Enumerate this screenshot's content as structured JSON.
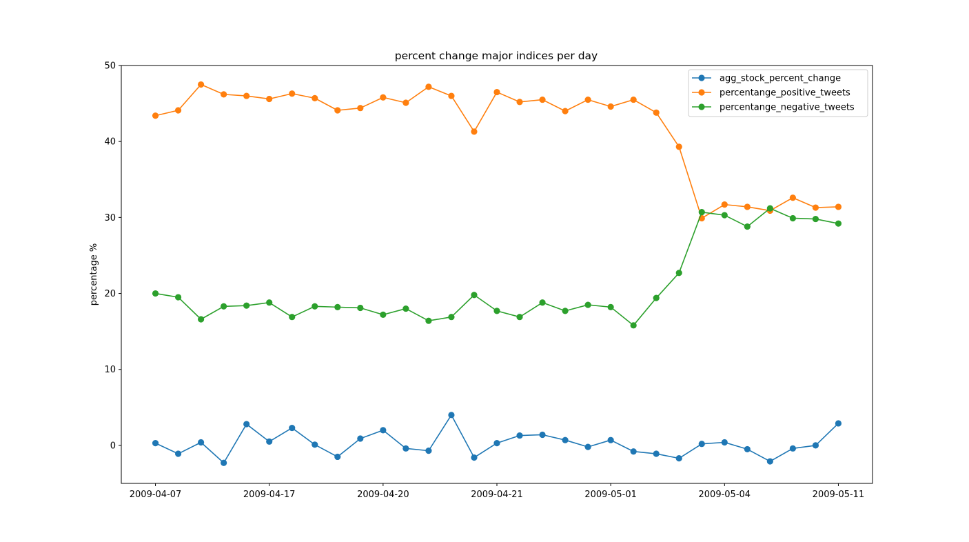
{
  "chart_data": {
    "type": "line",
    "title": "percent change major indices per day",
    "xlabel": "",
    "ylabel": "percentage %",
    "ylim": [
      -5,
      50
    ],
    "yticks": [
      0,
      10,
      20,
      30,
      40,
      50
    ],
    "xtick_labels": [
      "2009-04-07",
      "2009-04-17",
      "2009-04-20",
      "2009-04-21",
      "2009-05-01",
      "2009-05-04",
      "2009-05-11"
    ],
    "xtick_positions": [
      0,
      5,
      10,
      15,
      20,
      25,
      30
    ],
    "grid": false,
    "legend_position": "upper right",
    "x": [
      0,
      1,
      2,
      3,
      4,
      5,
      6,
      7,
      8,
      9,
      10,
      11,
      12,
      13,
      14,
      15,
      16,
      17,
      18,
      19,
      20,
      21,
      22,
      23,
      24,
      25,
      26,
      27,
      28,
      29,
      30
    ],
    "series": [
      {
        "name": "agg_stock_percent_change",
        "color": "#1f77b4",
        "values": [
          0.3,
          -1.1,
          0.4,
          -2.3,
          2.8,
          0.5,
          2.3,
          0.1,
          -1.5,
          0.9,
          2.0,
          -0.4,
          -0.7,
          4.0,
          -1.6,
          0.3,
          1.3,
          1.4,
          0.7,
          -0.2,
          0.7,
          -0.8,
          -1.1,
          -1.7,
          0.2,
          0.4,
          -0.5,
          -2.1,
          -0.4,
          0.0,
          2.9
        ]
      },
      {
        "name": "percentange_positive_tweets",
        "color": "#ff7f0e",
        "values": [
          43.4,
          44.1,
          47.5,
          46.2,
          46.0,
          45.6,
          46.3,
          45.7,
          44.1,
          44.4,
          45.8,
          45.1,
          47.2,
          46.0,
          41.3,
          46.5,
          45.2,
          45.5,
          44.0,
          45.5,
          44.6,
          45.5,
          43.8,
          39.3,
          29.9,
          31.7,
          31.4,
          30.9,
          32.6,
          31.3,
          31.4
        ]
      },
      {
        "name": "percentange_negative_tweets",
        "color": "#2ca02c",
        "values": [
          20.0,
          19.5,
          16.6,
          18.3,
          18.4,
          18.8,
          16.9,
          18.3,
          18.2,
          18.1,
          17.2,
          18.0,
          16.4,
          16.9,
          19.8,
          17.7,
          16.9,
          18.8,
          17.7,
          18.5,
          18.2,
          15.8,
          19.4,
          22.7,
          30.7,
          30.3,
          28.8,
          31.2,
          29.9,
          29.8,
          29.2
        ]
      }
    ]
  }
}
